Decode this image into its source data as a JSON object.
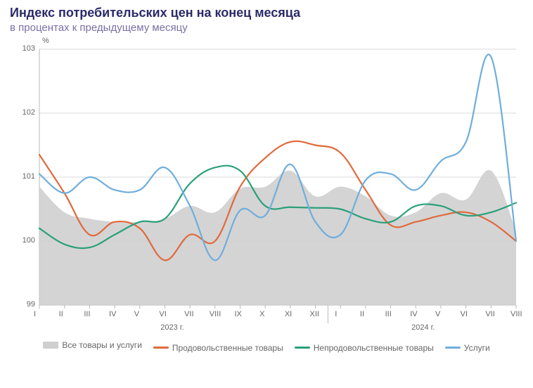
{
  "title": "Индекс потребительских цен на конец месяца",
  "subtitle": "в процентах к предыдущему месяцу",
  "chart": {
    "type": "line+area",
    "y_unit": "%",
    "ylim": [
      99,
      103
    ],
    "yticks": [
      99,
      100,
      101,
      102,
      103
    ],
    "x_labels": [
      "I",
      "II",
      "III",
      "IV",
      "V",
      "VI",
      "VII",
      "VIII",
      "IX",
      "X",
      "XI",
      "XII",
      "I",
      "II",
      "III",
      "IV",
      "V",
      "VI",
      "VII",
      "VIII"
    ],
    "year_labels": [
      {
        "label": "2023 г.",
        "center_index": 5.5
      },
      {
        "label": "2024 г.",
        "center_index": 15.5
      }
    ],
    "year_divider_index": 11.5,
    "grid_color": "#d9d9d9",
    "axis_color": "#b9b9b9",
    "background_color": "#ffffff",
    "axis_fontsize": 11,
    "line_width": 2.2,
    "series": {
      "all": {
        "label": "Все товары и услуги",
        "kind": "area",
        "color": "#cfcfcf",
        "opacity": 0.9,
        "values": [
          100.85,
          100.45,
          100.35,
          100.3,
          100.3,
          100.35,
          100.55,
          100.45,
          100.82,
          100.85,
          101.1,
          100.7,
          100.85,
          100.7,
          100.4,
          100.45,
          100.75,
          100.65,
          101.1,
          100.15
        ]
      },
      "food": {
        "label": "Продовольственные товары",
        "kind": "line",
        "color": "#e06a3b",
        "values": [
          101.35,
          100.75,
          100.1,
          100.3,
          100.2,
          99.7,
          100.1,
          100.0,
          100.85,
          101.3,
          101.55,
          101.5,
          101.38,
          100.8,
          100.25,
          100.3,
          100.4,
          100.45,
          100.3,
          100.0
        ]
      },
      "nonfood": {
        "label": "Непродовольственные товары",
        "kind": "line",
        "color": "#2aa07a",
        "values": [
          100.2,
          99.95,
          99.9,
          100.1,
          100.3,
          100.35,
          100.9,
          101.15,
          101.1,
          100.55,
          100.53,
          100.52,
          100.5,
          100.35,
          100.3,
          100.55,
          100.55,
          100.4,
          100.45,
          100.6
        ]
      },
      "services": {
        "label": "Услуги",
        "kind": "line",
        "color": "#6faedc",
        "values": [
          101.05,
          100.75,
          101.0,
          100.8,
          100.8,
          101.15,
          100.55,
          99.7,
          100.48,
          100.4,
          101.2,
          100.3,
          100.1,
          100.95,
          101.05,
          100.8,
          101.25,
          101.55,
          102.88,
          100.0
        ]
      }
    }
  },
  "legend_order": [
    "all",
    "food",
    "nonfood",
    "services"
  ]
}
